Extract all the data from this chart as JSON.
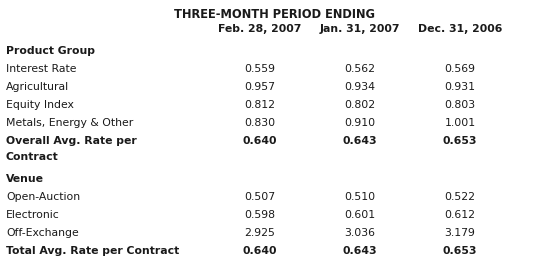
{
  "title": "THREE-MONTH PERIOD ENDING",
  "col_headers": [
    "Feb. 28, 2007",
    "Jan. 31, 2007",
    "Dec. 31, 2006"
  ],
  "sections": [
    {
      "header": "Product Group",
      "rows": [
        {
          "label": "Interest Rate",
          "values": [
            "0.559",
            "0.562",
            "0.569"
          ],
          "bold": false,
          "multiline": false
        },
        {
          "label": "Agricultural",
          "values": [
            "0.957",
            "0.934",
            "0.931"
          ],
          "bold": false,
          "multiline": false
        },
        {
          "label": "Equity Index",
          "values": [
            "0.812",
            "0.802",
            "0.803"
          ],
          "bold": false,
          "multiline": false
        },
        {
          "label": "Metals, Energy & Other",
          "values": [
            "0.830",
            "0.910",
            "1.001"
          ],
          "bold": false,
          "multiline": false
        },
        {
          "label": "Overall Avg. Rate per\nContract",
          "values": [
            "0.640",
            "0.643",
            "0.653"
          ],
          "bold": true,
          "multiline": true
        }
      ]
    },
    {
      "header": "Venue",
      "rows": [
        {
          "label": "Open-Auction",
          "values": [
            "0.507",
            "0.510",
            "0.522"
          ],
          "bold": false,
          "multiline": false
        },
        {
          "label": "Electronic",
          "values": [
            "0.598",
            "0.601",
            "0.612"
          ],
          "bold": false,
          "multiline": false
        },
        {
          "label": "Off-Exchange",
          "values": [
            "2.925",
            "3.036",
            "3.179"
          ],
          "bold": false,
          "multiline": false
        },
        {
          "label": "Total Avg. Rate per Contract",
          "values": [
            "0.640",
            "0.643",
            "0.653"
          ],
          "bold": true,
          "multiline": false
        }
      ]
    }
  ],
  "bg_color": "#ffffff",
  "text_color": "#1a1a1a",
  "font_size": 7.8,
  "fig_width": 5.48,
  "fig_height": 2.59,
  "dpi": 100
}
